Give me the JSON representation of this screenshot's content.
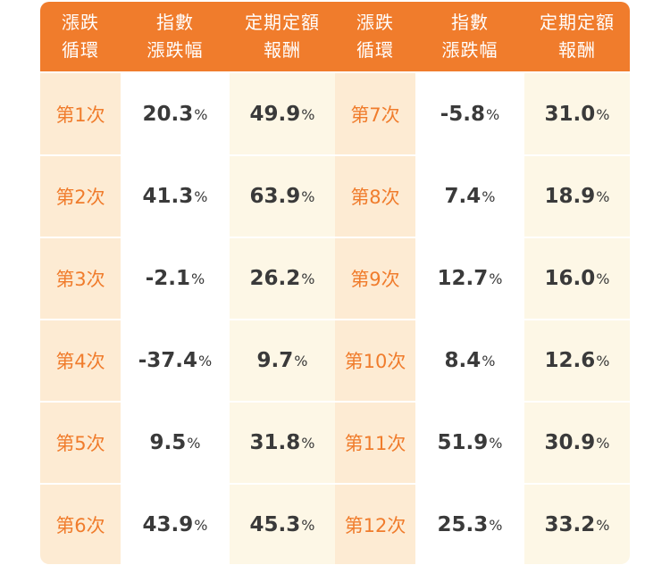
{
  "headers": [
    "漲跌\n循環",
    "指數\n漲跌幅",
    "定期定額\n報酬",
    "漲跌\n循環",
    "指數\n漲跌幅",
    "定期定額\n報酬"
  ],
  "rows": [
    {
      "cycle_a": "第1次",
      "index_a": "20.3",
      "ret_a": "49.9",
      "cycle_b": "第7次",
      "index_b": "-5.8",
      "ret_b": "31.0"
    },
    {
      "cycle_a": "第2次",
      "index_a": "41.3",
      "ret_a": "63.9",
      "cycle_b": "第8次",
      "index_b": "7.4",
      "ret_b": "18.9"
    },
    {
      "cycle_a": "第3次",
      "index_a": "-2.1",
      "ret_a": "26.2",
      "cycle_b": "第9次",
      "index_b": "12.7",
      "ret_b": "16.0"
    },
    {
      "cycle_a": "第4次",
      "index_a": "-37.4",
      "ret_a": "9.7",
      "cycle_b": "第10次",
      "index_b": "8.4",
      "ret_b": "12.6"
    },
    {
      "cycle_a": "第5次",
      "index_a": "9.5",
      "ret_a": "31.8",
      "cycle_b": "第11次",
      "index_b": "51.9",
      "ret_b": "30.9"
    },
    {
      "cycle_a": "第6次",
      "index_a": "43.9",
      "ret_a": "45.3",
      "cycle_b": "第12次",
      "index_b": "25.3",
      "ret_b": "33.2"
    }
  ],
  "percent_sign": "%",
  "colors": {
    "header": "#f07c2c",
    "cycle_bg": "#fdebd3",
    "return_bg": "#fdf7e6",
    "cycle_text": "#f07c2c",
    "value_text": "#3a3a3a"
  }
}
